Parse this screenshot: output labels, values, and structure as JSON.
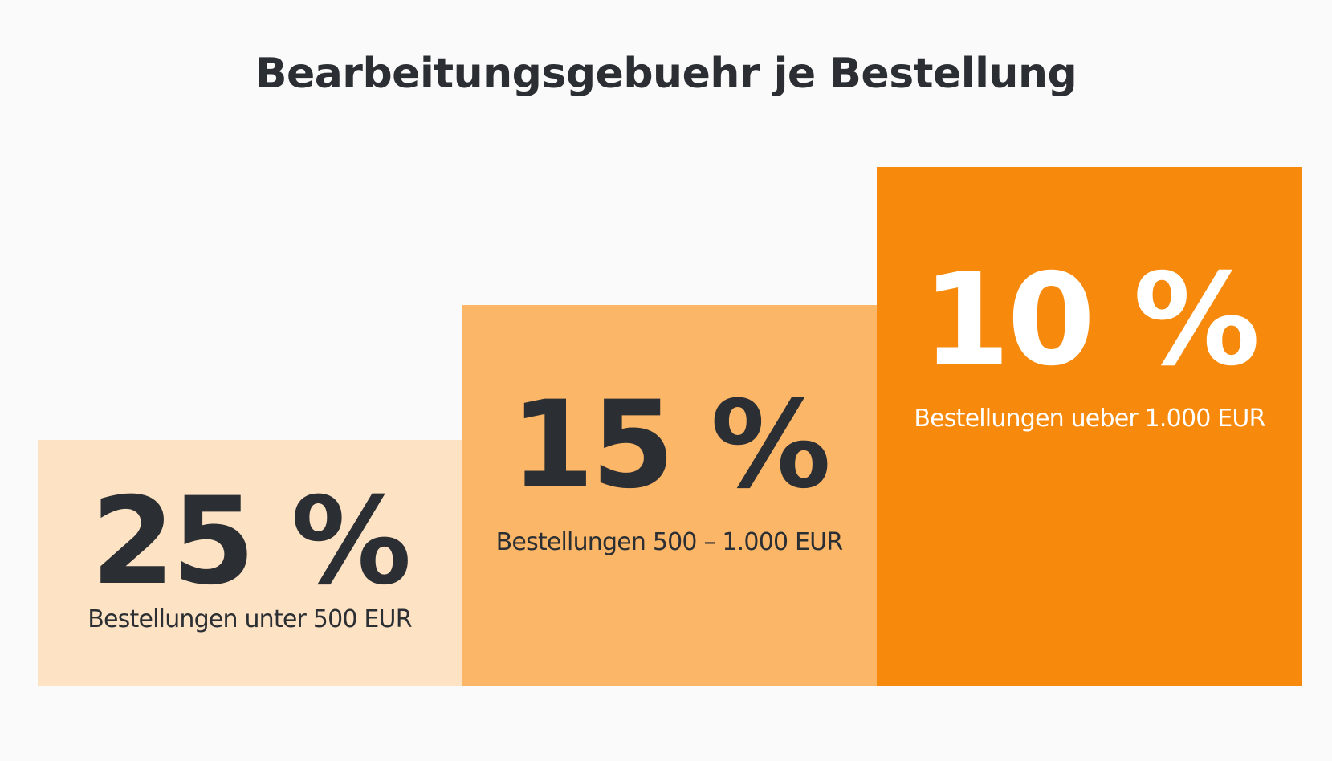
{
  "title": "Bearbeitungsgebuehr je Bestellung",
  "colors": {
    "background": "#fafafa",
    "text_dark": "#2b2f33",
    "text_light": "#ffffff",
    "tier_low": "#fde2c4",
    "tier_mid": "#fbb668",
    "tier_high": "#f78a0d"
  },
  "tiers": [
    {
      "value": "25 %",
      "label": "Bestellungen unter 500 EUR"
    },
    {
      "value": "15 %",
      "label": "Bestellungen 500 – 1.000 EUR"
    },
    {
      "value": "10 %",
      "label": "Bestellungen ueber 1.000 EUR"
    }
  ]
}
